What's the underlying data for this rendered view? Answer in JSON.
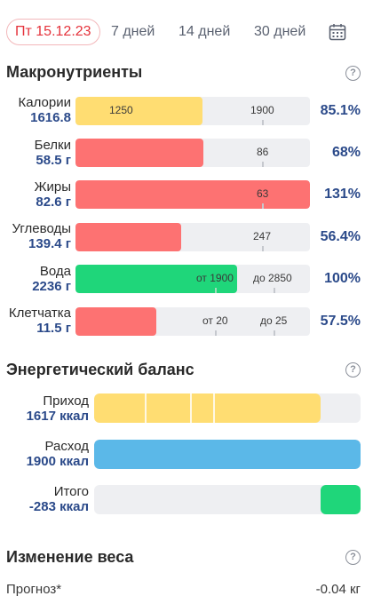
{
  "tabs": [
    {
      "label": "Пт 15.12.23",
      "active": true
    },
    {
      "label": "7 дней",
      "active": false
    },
    {
      "label": "14 дней",
      "active": false
    },
    {
      "label": "30 дней",
      "active": false
    }
  ],
  "macros": {
    "title": "Макронутриенты",
    "rows": [
      {
        "name": "Калории",
        "value": "1616.8",
        "pct": "85.1%",
        "fill_fraction": 0.54,
        "color": "#ffdd72",
        "marks": [
          "1250",
          "1900"
        ]
      },
      {
        "name": "Белки",
        "value": "58.5 г",
        "pct": "68%",
        "fill_fraction": 0.546,
        "color": "#fd7272",
        "marks": [
          "86"
        ]
      },
      {
        "name": "Жиры",
        "value": "82.6 г",
        "pct": "131%",
        "fill_fraction": 1.0,
        "color": "#fd7272",
        "marks": [
          "63"
        ]
      },
      {
        "name": "Углеводы",
        "value": "139.4 г",
        "pct": "56.4%",
        "fill_fraction": 0.45,
        "color": "#fd7272",
        "marks": [
          "247"
        ]
      },
      {
        "name": "Вода",
        "value": "2236 г",
        "pct": "100%",
        "fill_fraction": 0.69,
        "color": "#1fd67a",
        "marks": [
          "от 1900",
          "до 2850"
        ]
      },
      {
        "name": "Клетчатка",
        "value": "11.5 г",
        "pct": "57.5%",
        "fill_fraction": 0.345,
        "color": "#fd7272",
        "marks": [
          "от 20",
          "до 25"
        ]
      }
    ]
  },
  "energy": {
    "title": "Энергетический баланс",
    "rows": [
      {
        "name": "Приход",
        "value": "1617 ккал",
        "fill_fraction": 0.85,
        "color": "#ffdd72"
      },
      {
        "name": "Расход",
        "value": "1900 ккал",
        "fill_fraction": 1.0,
        "color": "#5bb8e8"
      },
      {
        "name": "Итого",
        "value": "-283 ккал",
        "fill_fraction": 0.15,
        "color": "#1fd67a"
      }
    ]
  },
  "weight": {
    "title": "Изменение веса",
    "forecast_label": "Прогноз*",
    "forecast_value": "-0.04 кг"
  },
  "help_glyph": "?"
}
